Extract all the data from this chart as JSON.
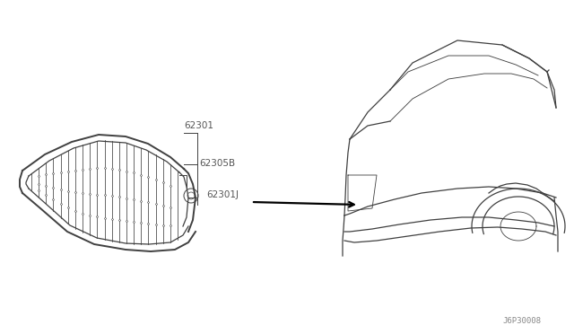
{
  "bg_color": "#ffffff",
  "line_color": "#404040",
  "label_color": "#555555",
  "diagram_id": "J6P30008",
  "labels": [
    "62301",
    "62305B",
    "62301J"
  ],
  "figsize": [
    6.4,
    3.72
  ],
  "dpi": 100
}
